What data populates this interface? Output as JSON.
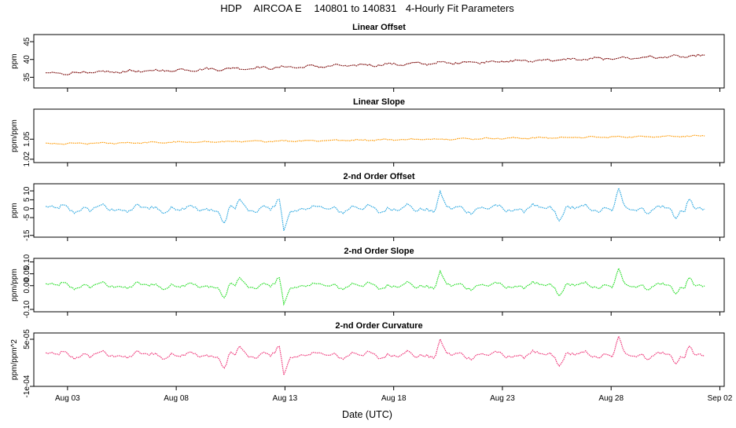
{
  "header": {
    "site": "HDP",
    "instrument": "AIRCOA E",
    "range": "140801 to 140831",
    "desc": "4-Hourly Fit Parameters"
  },
  "x_axis": {
    "label": "Date (UTC)",
    "ticks": [
      "Aug 03",
      "Aug 08",
      "Aug 13",
      "Aug 18",
      "Aug 23",
      "Aug 28",
      "Sep 02"
    ],
    "domain_days": [
      0.45,
      32.2
    ],
    "tick_days": [
      2,
      7,
      12,
      17,
      22,
      27,
      32
    ],
    "data_start_day": 1.0,
    "data_end_day": 31.3
  },
  "chart_data": [
    {
      "type": "line",
      "title": "Linear Offset",
      "ylabel": "ppm",
      "ylim": [
        32,
        47
      ],
      "yticks": [
        "35",
        "40",
        "45"
      ],
      "ytick_values": [
        35,
        40,
        45
      ],
      "color": "#8b0000",
      "series": [
        {
          "name": "Linear Offset",
          "start": 36.0,
          "end": 41.0,
          "noise": 0.45
        }
      ]
    },
    {
      "type": "line",
      "title": "Linear Slope",
      "ylabel": "ppm/ppm",
      "ylim": [
        1.015,
        1.095
      ],
      "yticks": [
        "1.02",
        "1.05"
      ],
      "ytick_values": [
        1.02,
        1.05
      ],
      "color": "#ff9900",
      "series": [
        {
          "name": "Linear Slope",
          "start": 1.043,
          "end": 1.055,
          "noise": 0.0012
        }
      ]
    },
    {
      "type": "line",
      "title": "2-nd Order Offset",
      "ylabel": "ppm",
      "ylim": [
        -16,
        14
      ],
      "yticks": [
        "-15",
        "-5",
        "0",
        "5",
        "10"
      ],
      "ytick_values": [
        -15,
        -5,
        0,
        5,
        10
      ],
      "color": "#2aa7e0",
      "series": [
        {
          "name": "2-nd Order Offset",
          "start": 0,
          "end": 0,
          "noise": 3.5
        }
      ]
    },
    {
      "type": "line",
      "title": "2-nd Order Slope",
      "ylabel": "ppm/ppm",
      "ylim": [
        -0.11,
        0.115
      ],
      "yticks": [
        "-0.10",
        "0.00",
        "0.05",
        "0.10"
      ],
      "ytick_values": [
        -0.1,
        0.0,
        0.05,
        0.1
      ],
      "color": "#22dd22",
      "series": [
        {
          "name": "2-nd Order Slope",
          "start": 0,
          "end": 0,
          "noise": 0.022
        }
      ]
    },
    {
      "type": "line",
      "title": "2-nd Order Curvature",
      "ylabel": "ppm/ppm^2",
      "ylim": [
        -0.0001,
        7e-05
      ],
      "yticks": [
        "-1e-04",
        "5e-05"
      ],
      "ytick_values": [
        -0.0001,
        5e-05
      ],
      "color": "#ee3377",
      "series": [
        {
          "name": "2-nd Order Curvature",
          "start": 0,
          "end": 0,
          "noise": 1.8e-05
        }
      ]
    }
  ]
}
